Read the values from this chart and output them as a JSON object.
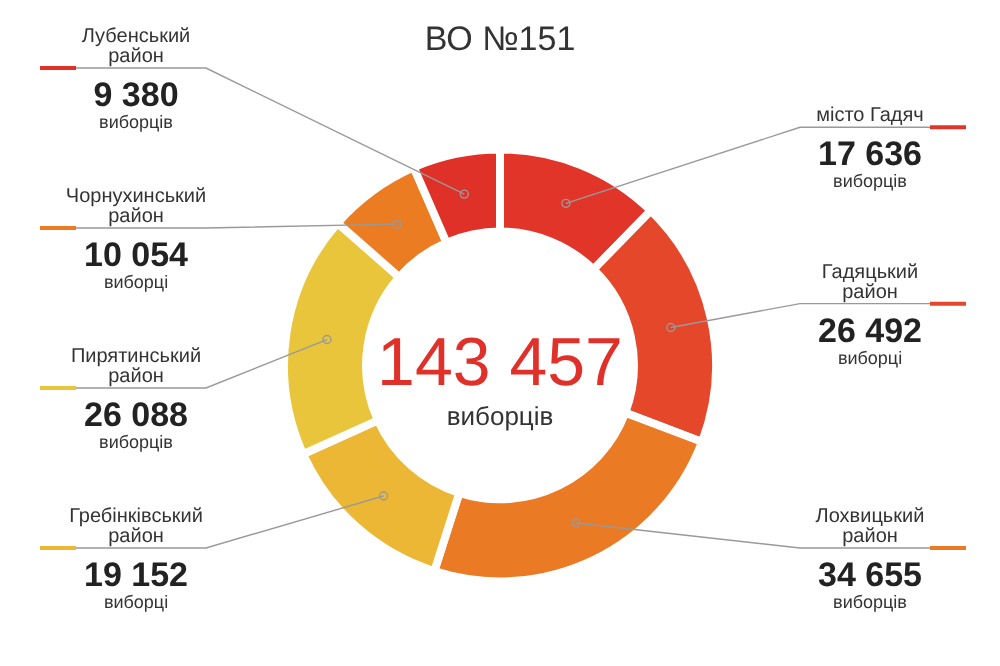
{
  "chart_data": {
    "type": "donut",
    "title": "ВО №151",
    "categories": [
      "місто Гадяч",
      "Гадяцький район",
      "Лохвицький район",
      "Гребінківський район",
      "Пирятинський район",
      "Чорнухинський район",
      "Лубенський район"
    ],
    "values": [
      17636,
      26492,
      34655,
      19152,
      26088,
      10054,
      9380
    ],
    "value_labels": [
      "17 636 виборців",
      "26 492 виборці",
      "34 655 виборців",
      "19 152 виборці",
      "26 088 виборців",
      "10 054 виборці",
      "9 380 виборців"
    ],
    "colors": [
      "#e2352a",
      "#e4472a",
      "#eb7a25",
      "#ecb734",
      "#e9c53c",
      "#ec7c22",
      "#df3127"
    ],
    "annotations": [
      "143 457",
      "виборців"
    ]
  }
}
